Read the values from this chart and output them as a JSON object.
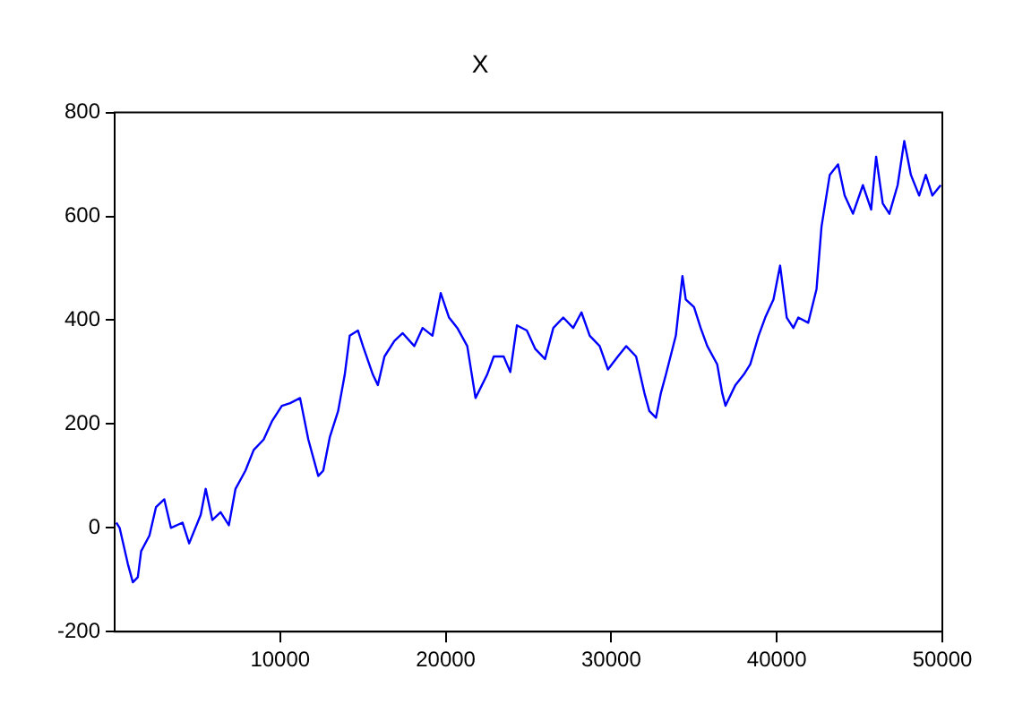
{
  "chart_data": {
    "type": "line",
    "title": "X",
    "x": [
      100,
      300,
      800,
      1100,
      1400,
      1600,
      2100,
      2500,
      3000,
      3400,
      4100,
      4500,
      5200,
      5500,
      5900,
      6400,
      6900,
      7300,
      7900,
      8400,
      9000,
      9500,
      10100,
      10600,
      11200,
      11700,
      12300,
      12600,
      13000,
      13500,
      13900,
      14200,
      14700,
      15000,
      15600,
      15900,
      16300,
      16900,
      17400,
      18100,
      18600,
      19200,
      19700,
      20200,
      20700,
      21300,
      21800,
      22500,
      22900,
      23500,
      23900,
      24300,
      24900,
      25400,
      26000,
      26500,
      27100,
      27700,
      28200,
      28700,
      29300,
      29800,
      30400,
      30900,
      31500,
      32000,
      32300,
      32700,
      33000,
      33300,
      33900,
      34300,
      34500,
      35000,
      35400,
      35800,
      36400,
      36700,
      36900,
      37500,
      38000,
      38400,
      38900,
      39300,
      39800,
      40200,
      40600,
      41000,
      41300,
      41900,
      42400,
      42700,
      43200,
      43700,
      44100,
      44600,
      45200,
      45700,
      46000,
      46400,
      46800,
      47300,
      47700,
      48100,
      48600,
      49000,
      49400,
      49900
    ],
    "series": [
      {
        "color": "#0000ff",
        "values": [
          10,
          0,
          -70,
          -105,
          -95,
          -45,
          -15,
          40,
          55,
          0,
          10,
          -30,
          25,
          75,
          15,
          30,
          5,
          75,
          110,
          150,
          170,
          205,
          235,
          240,
          250,
          170,
          100,
          110,
          175,
          225,
          295,
          370,
          380,
          350,
          295,
          275,
          330,
          360,
          375,
          350,
          385,
          370,
          452,
          405,
          385,
          350,
          250,
          295,
          330,
          330,
          300,
          390,
          380,
          345,
          325,
          385,
          405,
          385,
          415,
          370,
          350,
          305,
          330,
          350,
          330,
          260,
          225,
          212,
          260,
          295,
          370,
          485,
          440,
          425,
          385,
          350,
          315,
          260,
          235,
          275,
          295,
          315,
          370,
          405,
          440,
          505,
          405,
          385,
          405,
          395,
          460,
          580,
          680,
          700,
          640,
          605,
          660,
          613,
          715,
          625,
          605,
          660,
          745,
          680,
          640,
          680,
          640,
          660
        ]
      }
    ],
    "xlim": [
      0,
      50000
    ],
    "xticks": [
      10000,
      20000,
      30000,
      40000,
      50000
    ],
    "ylim": [
      -200,
      800
    ],
    "yticks": [
      -200,
      0,
      200,
      400,
      600,
      800
    ],
    "grid": false,
    "legend": false,
    "marker": "none",
    "line_style": "solid"
  }
}
